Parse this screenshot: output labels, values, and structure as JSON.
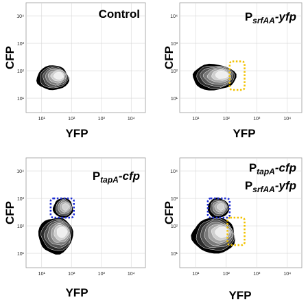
{
  "chart_data": [
    {
      "type": "flow-cytometry-density-plot",
      "title_parts": [
        {
          "text": "Control",
          "style": "normal"
        }
      ],
      "xlabel": "YFP",
      "ylabel": "CFP",
      "xscale": "log",
      "yscale": "log",
      "xlim": [
        3,
        30000
      ],
      "ylim": [
        3,
        30000
      ],
      "x_ticks": [
        "10¹",
        "10²",
        "10³",
        "10⁴"
      ],
      "y_ticks": [
        "10¹",
        "10²",
        "10³",
        "10⁴"
      ],
      "grid": true,
      "populations": [
        {
          "name": "main",
          "x_center": 40,
          "y_center": 100,
          "x_range": [
            7,
            80
          ],
          "y_range": [
            20,
            150
          ]
        }
      ],
      "gates": []
    },
    {
      "type": "flow-cytometry-density-plot",
      "title_parts": [
        {
          "text": "P",
          "style": "normal"
        },
        {
          "text": "srfAA",
          "style": "sub"
        },
        {
          "text": "-yfp",
          "style": "italic"
        }
      ],
      "xlabel": "YFP",
      "ylabel": "CFP",
      "xscale": "log",
      "yscale": "log",
      "xlim": [
        3,
        30000
      ],
      "ylim": [
        3,
        30000
      ],
      "x_ticks": [
        "10¹",
        "10²",
        "10³",
        "10⁴"
      ],
      "y_ticks": [
        "10¹",
        "10²",
        "10³",
        "10⁴"
      ],
      "grid": true,
      "populations": [
        {
          "name": "main",
          "x_center": 45,
          "y_center": 100,
          "x_range": [
            8,
            200
          ],
          "y_range": [
            20,
            170
          ]
        }
      ],
      "gates": [
        {
          "color": "#f2c200",
          "x_range": [
            130,
            400
          ],
          "y_range": [
            20,
            220
          ]
        }
      ]
    },
    {
      "type": "flow-cytometry-density-plot",
      "title_parts": [
        {
          "text": "P",
          "style": "normal"
        },
        {
          "text": "tapA",
          "style": "sub"
        },
        {
          "text": "-cfp",
          "style": "italic"
        }
      ],
      "xlabel": "YFP",
      "ylabel": "CFP",
      "xscale": "log",
      "yscale": "log",
      "xlim": [
        3,
        30000
      ],
      "ylim": [
        3,
        30000
      ],
      "x_ticks": [
        "10¹",
        "10²",
        "10³",
        "10⁴"
      ],
      "y_ticks": [
        "10¹",
        "10²",
        "10³",
        "10⁴"
      ],
      "grid": true,
      "populations": [
        {
          "name": "main",
          "x_center": 40,
          "y_center": 80,
          "x_range": [
            8,
            110
          ],
          "y_range": [
            10,
            200
          ]
        },
        {
          "name": "cfp-high",
          "x_center": 50,
          "y_center": 500,
          "x_range": [
            25,
            110
          ],
          "y_range": [
            200,
            1000
          ]
        }
      ],
      "gates": [
        {
          "color": "#1f2fd6",
          "x_range": [
            20,
            120
          ],
          "y_range": [
            200,
            1000
          ]
        }
      ]
    },
    {
      "type": "flow-cytometry-density-plot",
      "title_parts": [
        {
          "text": "P",
          "style": "normal"
        },
        {
          "text": "tapA",
          "style": "sub"
        },
        {
          "text": "-cfp",
          "style": "italic"
        },
        {
          "text": "P",
          "style": "normal"
        },
        {
          "text": "srfAA",
          "style": "sub"
        },
        {
          "text": "-yfp",
          "style": "italic"
        }
      ],
      "xlabel": "YFP",
      "ylabel": "CFP",
      "xscale": "log",
      "yscale": "log",
      "xlim": [
        3,
        30000
      ],
      "ylim": [
        3,
        30000
      ],
      "x_ticks": [
        "10¹",
        "10²",
        "10³",
        "10⁴"
      ],
      "y_ticks": [
        "10¹",
        "10²",
        "10³",
        "10⁴"
      ],
      "grid": true,
      "populations": [
        {
          "name": "main",
          "x_center": 40,
          "y_center": 80,
          "x_range": [
            8,
            200
          ],
          "y_range": [
            10,
            200
          ]
        },
        {
          "name": "cfp-high",
          "x_center": 60,
          "y_center": 500,
          "x_range": [
            25,
            120
          ],
          "y_range": [
            200,
            1000
          ]
        }
      ],
      "gates": [
        {
          "color": "#1f2fd6",
          "x_range": [
            25,
            130
          ],
          "y_range": [
            200,
            1000
          ]
        },
        {
          "color": "#f2c200",
          "x_range": [
            110,
            400
          ],
          "y_range": [
            20,
            200
          ]
        }
      ]
    }
  ]
}
